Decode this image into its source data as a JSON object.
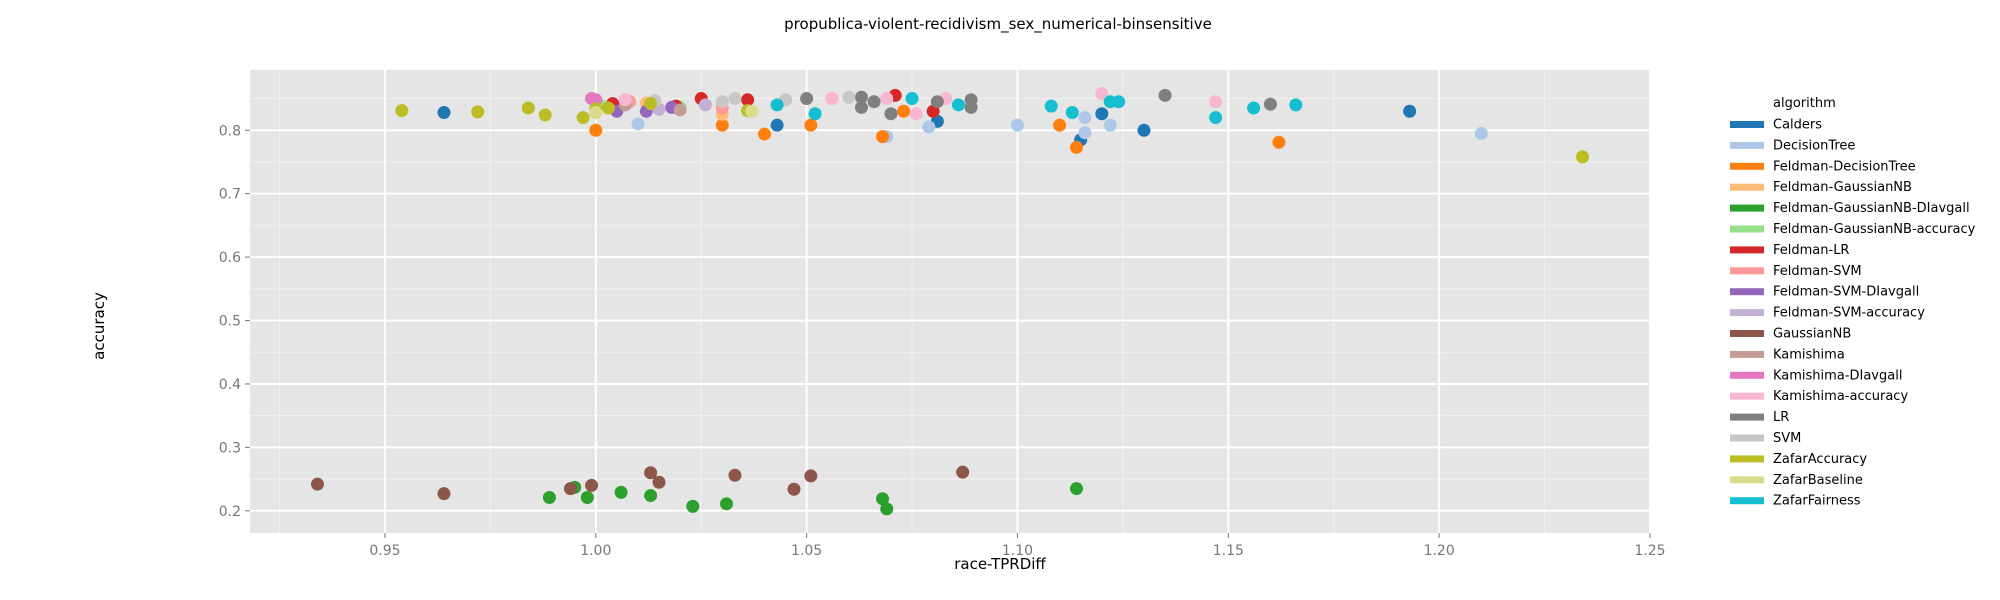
{
  "chart_data": {
    "type": "scatter",
    "title": "propublica-violent-recidivism_sex_numerical-binsensitive",
    "xlabel": "race-TPRDiff",
    "ylabel": "accuracy",
    "xlim": [
      0.918,
      1.25
    ],
    "ylim": [
      0.165,
      0.895
    ],
    "xticks": [
      0.95,
      1.0,
      1.05,
      1.1,
      1.15,
      1.2,
      1.25
    ],
    "xtick_labels": [
      "0.95",
      "1.00",
      "1.05",
      "1.10",
      "1.15",
      "1.20",
      "1.25"
    ],
    "yticks": [
      0.2,
      0.3,
      0.4,
      0.5,
      0.6,
      0.7,
      0.8
    ],
    "ytick_labels": [
      "0.2",
      "0.3",
      "0.4",
      "0.5",
      "0.6",
      "0.7",
      "0.8"
    ],
    "grid": true,
    "legend_title": "algorithm",
    "legend_position": "right",
    "series": [
      {
        "name": "Calders",
        "color": "#1f77b4",
        "points": [
          [
            0.964,
            0.828
          ],
          [
            1.043,
            0.808
          ],
          [
            1.081,
            0.814
          ],
          [
            1.115,
            0.785
          ],
          [
            1.12,
            0.826
          ],
          [
            1.13,
            0.8
          ],
          [
            1.193,
            0.83
          ]
        ]
      },
      {
        "name": "DecisionTree",
        "color": "#aec7e8",
        "points": [
          [
            1.01,
            0.81
          ],
          [
            1.069,
            0.79
          ],
          [
            1.079,
            0.805
          ],
          [
            1.1,
            0.808
          ],
          [
            1.116,
            0.796
          ],
          [
            1.116,
            0.82
          ],
          [
            1.122,
            0.808
          ],
          [
            1.21,
            0.795
          ]
        ]
      },
      {
        "name": "Feldman-DecisionTree",
        "color": "#ff7f0e",
        "points": [
          [
            1.0,
            0.8
          ],
          [
            1.03,
            0.808
          ],
          [
            1.04,
            0.794
          ],
          [
            1.051,
            0.808
          ],
          [
            1.068,
            0.79
          ],
          [
            1.073,
            0.83
          ],
          [
            1.11,
            0.808
          ],
          [
            1.114,
            0.773
          ],
          [
            1.162,
            0.781
          ]
        ]
      },
      {
        "name": "Feldman-GaussianNB",
        "color": "#ffbb78",
        "points": [
          [
            1.003,
            0.835
          ],
          [
            1.012,
            0.843
          ],
          [
            1.03,
            0.825
          ]
        ]
      },
      {
        "name": "Feldman-GaussianNB-DIavgall",
        "color": "#2ca02c",
        "points": [
          [
            0.989,
            0.221
          ],
          [
            0.995,
            0.237
          ],
          [
            0.998,
            0.221
          ],
          [
            1.006,
            0.229
          ],
          [
            1.013,
            0.224
          ],
          [
            1.023,
            0.207
          ],
          [
            1.031,
            0.211
          ],
          [
            1.068,
            0.219
          ],
          [
            1.069,
            0.203
          ],
          [
            1.114,
            0.235
          ]
        ]
      },
      {
        "name": "Feldman-GaussianNB-accuracy",
        "color": "#98df8a",
        "points": [
          [
            1.001,
            0.84
          ],
          [
            1.02,
            0.836
          ]
        ]
      },
      {
        "name": "Feldman-LR",
        "color": "#d62728",
        "points": [
          [
            1.004,
            0.842
          ],
          [
            1.019,
            0.838
          ],
          [
            1.025,
            0.85
          ],
          [
            1.036,
            0.848
          ],
          [
            1.071,
            0.855
          ],
          [
            1.08,
            0.83
          ]
        ]
      },
      {
        "name": "Feldman-SVM",
        "color": "#ff9896",
        "points": [
          [
            1.008,
            0.845
          ],
          [
            1.03,
            0.835
          ]
        ]
      },
      {
        "name": "Feldman-SVM-DIavgall",
        "color": "#9467bd",
        "points": [
          [
            1.005,
            0.83
          ],
          [
            1.012,
            0.83
          ],
          [
            1.018,
            0.836
          ]
        ]
      },
      {
        "name": "Feldman-SVM-accuracy",
        "color": "#c5b0d5",
        "points": [
          [
            1.015,
            0.833
          ],
          [
            1.026,
            0.84
          ]
        ]
      },
      {
        "name": "GaussianNB",
        "color": "#8c564b",
        "points": [
          [
            0.934,
            0.242
          ],
          [
            0.964,
            0.227
          ],
          [
            0.994,
            0.235
          ],
          [
            0.999,
            0.24
          ],
          [
            1.013,
            0.26
          ],
          [
            1.015,
            0.245
          ],
          [
            1.033,
            0.256
          ],
          [
            1.047,
            0.234
          ],
          [
            1.051,
            0.255
          ],
          [
            1.087,
            0.261
          ]
        ]
      },
      {
        "name": "Kamishima",
        "color": "#c49c94",
        "points": [
          [
            1.007,
            0.84
          ],
          [
            1.02,
            0.832
          ]
        ]
      },
      {
        "name": "Kamishima-DIavgall",
        "color": "#e377c2",
        "points": [
          [
            0.999,
            0.85
          ],
          [
            1.0,
            0.848
          ]
        ]
      },
      {
        "name": "Kamishima-accuracy",
        "color": "#f7b6d2",
        "points": [
          [
            1.007,
            0.848
          ],
          [
            1.056,
            0.85
          ],
          [
            1.069,
            0.85
          ],
          [
            1.076,
            0.826
          ],
          [
            1.083,
            0.85
          ],
          [
            1.12,
            0.858
          ],
          [
            1.147,
            0.845
          ]
        ]
      },
      {
        "name": "LR",
        "color": "#7f7f7f",
        "points": [
          [
            1.05,
            0.85
          ],
          [
            1.063,
            0.852
          ],
          [
            1.066,
            0.845
          ],
          [
            1.063,
            0.836
          ],
          [
            1.07,
            0.826
          ],
          [
            1.081,
            0.845
          ],
          [
            1.089,
            0.848
          ],
          [
            1.089,
            0.836
          ],
          [
            1.135,
            0.855
          ],
          [
            1.16,
            0.841
          ]
        ]
      },
      {
        "name": "SVM",
        "color": "#c7c7c7",
        "points": [
          [
            1.03,
            0.845
          ],
          [
            1.033,
            0.85
          ],
          [
            1.045,
            0.848
          ],
          [
            1.06,
            0.852
          ],
          [
            1.014,
            0.847
          ]
        ]
      },
      {
        "name": "ZafarAccuracy",
        "color": "#bcbd22",
        "points": [
          [
            0.954,
            0.831
          ],
          [
            0.972,
            0.829
          ],
          [
            0.984,
            0.835
          ],
          [
            0.988,
            0.824
          ],
          [
            0.997,
            0.82
          ],
          [
            1.0,
            0.834
          ],
          [
            1.003,
            0.835
          ],
          [
            1.013,
            0.842
          ],
          [
            1.036,
            0.831
          ],
          [
            1.234,
            0.758
          ]
        ]
      },
      {
        "name": "ZafarBaseline",
        "color": "#dbdb8d",
        "points": [
          [
            1.0,
            0.828
          ],
          [
            1.037,
            0.83
          ]
        ]
      },
      {
        "name": "ZafarFairness",
        "color": "#17becf",
        "points": [
          [
            1.043,
            0.84
          ],
          [
            1.052,
            0.826
          ],
          [
            1.075,
            0.85
          ],
          [
            1.086,
            0.84
          ],
          [
            1.108,
            0.838
          ],
          [
            1.113,
            0.828
          ],
          [
            1.122,
            0.845
          ],
          [
            1.124,
            0.845
          ],
          [
            1.147,
            0.82
          ],
          [
            1.156,
            0.835
          ],
          [
            1.166,
            0.84
          ]
        ]
      }
    ]
  }
}
